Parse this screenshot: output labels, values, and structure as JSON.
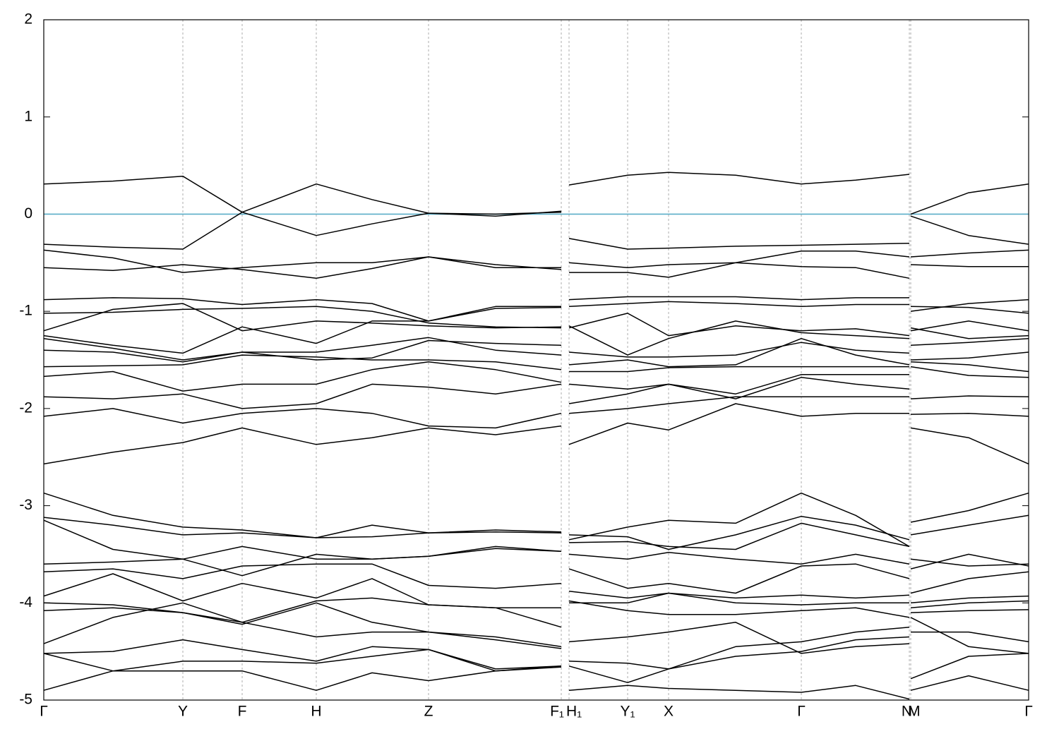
{
  "chart_data": {
    "type": "line",
    "x": [
      0,
      0.98,
      1.97,
      2.81,
      3.86,
      4.65,
      5.45,
      6.4,
      7.33,
      7.38,
      7.44,
      8.27,
      8.85,
      9.8,
      10.73,
      11.5,
      12.26,
      12.27,
      12.28,
      13.1,
      13.95
    ],
    "xlim": [
      0,
      13.95
    ],
    "xticks": [
      {
        "value": 0,
        "label": "Γ"
      },
      {
        "value": 1.97,
        "label": "Y"
      },
      {
        "value": 2.81,
        "label": "F"
      },
      {
        "value": 3.86,
        "label": "H"
      },
      {
        "value": 5.45,
        "label": "Z"
      },
      {
        "value": 7.33,
        "label": "F₁"
      },
      {
        "value": 7.44,
        "label": "H₁"
      },
      {
        "value": 8.27,
        "label": "Y₁"
      },
      {
        "value": 8.85,
        "label": "X"
      },
      {
        "value": 10.73,
        "label": "Γ"
      },
      {
        "value": 12.26,
        "label": "N"
      },
      {
        "value": 12.28,
        "label": "M"
      },
      {
        "value": 13.95,
        "label": "Γ"
      }
    ],
    "ylim": [
      -5,
      2
    ],
    "yticks": [
      -5,
      -4,
      -3,
      -2,
      -1,
      0,
      1,
      2
    ],
    "xgrid": true,
    "line_color": "#000000",
    "hline": {
      "value": 0,
      "color": "#5aaec8"
    },
    "series": [
      {
        "values": [
          0.31,
          0.34,
          0.39,
          0.02,
          -0.22,
          -0.1,
          0.01,
          0.0,
          0.02,
          null,
          -0.25,
          -0.36,
          -0.35,
          -0.33,
          -0.32,
          -0.31,
          -0.3,
          null,
          -0.02,
          -0.22,
          -0.31
        ]
      },
      {
        "values": [
          -0.31,
          -0.34,
          -0.36,
          0.02,
          0.31,
          0.15,
          0.01,
          -0.02,
          0.03,
          null,
          0.3,
          0.4,
          0.43,
          0.4,
          0.31,
          0.35,
          0.41,
          null,
          0.0,
          0.22,
          0.31
        ]
      },
      {
        "values": [
          -0.37,
          -0.45,
          -0.6,
          -0.55,
          -0.5,
          -0.5,
          -0.44,
          -0.55,
          -0.55,
          null,
          -0.5,
          -0.55,
          -0.52,
          -0.5,
          -0.38,
          -0.38,
          -0.44,
          null,
          -0.44,
          -0.4,
          -0.37
        ]
      },
      {
        "values": [
          -0.55,
          -0.58,
          -0.52,
          -0.57,
          -0.66,
          -0.56,
          -0.44,
          -0.52,
          -0.57,
          null,
          -0.6,
          -0.6,
          -0.65,
          -0.5,
          -0.54,
          -0.55,
          -0.66,
          null,
          -0.52,
          -0.54,
          -0.54
        ]
      },
      {
        "values": [
          -0.88,
          -0.86,
          -0.87,
          -0.93,
          -0.88,
          -0.92,
          -1.1,
          -0.95,
          -0.95,
          null,
          -0.88,
          -0.85,
          -0.85,
          -0.85,
          -0.88,
          -0.86,
          -0.86,
          null,
          -1.0,
          -0.92,
          -0.88
        ]
      },
      {
        "values": [
          -1.02,
          -1.01,
          -0.98,
          -0.97,
          -0.95,
          -1.0,
          -1.12,
          -1.16,
          -1.17,
          null,
          -0.95,
          -0.92,
          -0.9,
          -0.92,
          -0.95,
          -0.93,
          -0.93,
          null,
          -0.95,
          -0.96,
          -1.02
        ]
      },
      {
        "values": [
          -1.2,
          -0.98,
          -0.92,
          -1.2,
          -1.1,
          -1.12,
          -1.15,
          -1.17,
          -1.16,
          null,
          -1.17,
          -1.02,
          -1.25,
          -1.15,
          -1.2,
          -1.18,
          -1.25,
          null,
          -1.2,
          -1.1,
          -1.2
        ]
      },
      {
        "values": [
          -1.25,
          -1.35,
          -1.43,
          -1.16,
          -1.33,
          -1.1,
          -1.1,
          -0.97,
          -0.96,
          null,
          -1.15,
          -1.45,
          -1.28,
          -1.1,
          -1.22,
          -1.25,
          -1.28,
          null,
          -1.17,
          -1.28,
          -1.25
        ]
      },
      {
        "values": [
          -1.28,
          -1.38,
          -1.5,
          -1.42,
          -1.42,
          -1.35,
          -1.27,
          -1.4,
          -1.45,
          null,
          -1.42,
          -1.47,
          -1.47,
          -1.45,
          -1.32,
          -1.4,
          -1.43,
          null,
          -1.35,
          -1.32,
          -1.28
        ]
      },
      {
        "values": [
          -1.4,
          -1.42,
          -1.52,
          -1.42,
          -1.5,
          -1.48,
          -1.3,
          -1.33,
          -1.35,
          null,
          -1.55,
          -1.5,
          -1.57,
          -1.55,
          -1.28,
          -1.45,
          -1.55,
          null,
          -1.5,
          -1.48,
          -1.42
        ]
      },
      {
        "values": [
          -1.57,
          -1.56,
          -1.55,
          -1.45,
          -1.47,
          -1.5,
          -1.5,
          -1.52,
          -1.6,
          null,
          -1.62,
          -1.62,
          -1.58,
          -1.57,
          -1.57,
          -1.57,
          -1.57,
          null,
          -1.52,
          -1.55,
          -1.62
        ]
      },
      {
        "values": [
          -1.67,
          -1.62,
          -1.82,
          -1.75,
          -1.75,
          -1.6,
          -1.52,
          -1.6,
          -1.73,
          null,
          -1.75,
          -1.8,
          -1.75,
          -1.85,
          -1.65,
          -1.65,
          -1.65,
          null,
          -1.57,
          -1.66,
          -1.68
        ]
      },
      {
        "values": [
          -1.88,
          -1.9,
          -1.85,
          -2.0,
          -1.95,
          -1.75,
          -1.78,
          -1.85,
          -1.75,
          null,
          -1.95,
          -1.85,
          -1.75,
          -1.9,
          -1.68,
          -1.75,
          -1.8,
          null,
          -1.9,
          -1.87,
          -1.88
        ]
      },
      {
        "values": [
          -2.08,
          -2.0,
          -2.15,
          -2.05,
          -2.0,
          -2.05,
          -2.18,
          -2.2,
          -2.05,
          null,
          -2.05,
          -2.0,
          -1.95,
          -1.88,
          -1.88,
          -1.88,
          -1.88,
          null,
          -2.06,
          -2.05,
          -2.08
        ]
      },
      {
        "values": [
          -2.57,
          -2.45,
          -2.35,
          -2.2,
          -2.37,
          -2.3,
          -2.2,
          -2.27,
          -2.18,
          null,
          -2.37,
          -2.15,
          -2.22,
          -1.95,
          -2.08,
          -2.05,
          -2.05,
          null,
          -2.2,
          -2.3,
          -2.57
        ]
      },
      {
        "values": [
          -2.87,
          -3.1,
          -3.22,
          -3.25,
          -3.33,
          -3.2,
          -3.28,
          -3.27,
          -3.28,
          null,
          -3.35,
          -3.22,
          -3.15,
          -3.18,
          -2.87,
          -3.1,
          -3.42,
          null,
          -3.17,
          -3.05,
          -2.87
        ]
      },
      {
        "values": [
          -3.12,
          -3.2,
          -3.3,
          -3.28,
          -3.33,
          -3.32,
          -3.28,
          -3.25,
          -3.27,
          null,
          -3.3,
          -3.32,
          -3.45,
          -3.3,
          -3.11,
          -3.2,
          -3.35,
          null,
          -3.3,
          -3.2,
          -3.1
        ]
      },
      {
        "values": [
          -3.15,
          -3.45,
          -3.55,
          -3.42,
          -3.55,
          -3.55,
          -3.52,
          -3.42,
          -3.47,
          null,
          -3.38,
          -3.37,
          -3.42,
          -3.45,
          -3.18,
          -3.3,
          -3.42,
          null,
          -3.55,
          -3.62,
          -3.6
        ]
      },
      {
        "values": [
          -3.6,
          -3.58,
          -3.55,
          -3.72,
          -3.5,
          -3.55,
          -3.52,
          -3.44,
          -3.47,
          null,
          -3.5,
          -3.55,
          -3.48,
          -3.55,
          -3.6,
          -3.5,
          -3.6,
          null,
          -3.65,
          -3.5,
          -3.62
        ]
      },
      {
        "values": [
          -3.68,
          -3.65,
          -3.75,
          -3.62,
          -3.6,
          -3.6,
          -3.82,
          -3.85,
          -3.8,
          null,
          -3.65,
          -3.85,
          -3.8,
          -3.9,
          -3.62,
          -3.6,
          -3.75,
          null,
          -3.9,
          -3.75,
          -3.68
        ]
      },
      {
        "values": [
          -3.93,
          -3.7,
          -3.98,
          -3.8,
          -3.95,
          -3.75,
          -4.02,
          -4.05,
          -4.05,
          null,
          -3.88,
          -3.95,
          -3.9,
          -3.95,
          -3.92,
          -3.95,
          -3.92,
          null,
          -4.0,
          -3.95,
          -3.93
        ]
      },
      {
        "values": [
          -4.0,
          -4.02,
          -4.1,
          -4.2,
          -3.98,
          -3.95,
          -4.02,
          -4.05,
          -4.25,
          null,
          -4.0,
          -4.0,
          -3.9,
          -4.0,
          -4.02,
          -4.0,
          -4.0,
          null,
          -4.05,
          -4.0,
          -3.98
        ]
      },
      {
        "values": [
          -4.08,
          -4.05,
          -4.1,
          -4.22,
          -4.0,
          -4.2,
          -4.3,
          -4.35,
          -4.45,
          null,
          -3.98,
          -4.08,
          -4.12,
          -4.12,
          -4.08,
          -4.05,
          -4.15,
          null,
          -4.1,
          -4.08,
          -4.07
        ]
      },
      {
        "values": [
          -4.42,
          -4.15,
          -4.0,
          -4.2,
          -4.35,
          -4.3,
          -4.3,
          -4.38,
          -4.47,
          null,
          -4.4,
          -4.35,
          -4.3,
          -4.2,
          -4.52,
          -4.45,
          -4.42,
          null,
          -4.3,
          -4.3,
          -4.4
        ]
      },
      {
        "values": [
          -4.52,
          -4.5,
          -4.38,
          -4.48,
          -4.6,
          -4.45,
          -4.48,
          -4.68,
          -4.65,
          null,
          -4.6,
          -4.62,
          -4.68,
          -4.55,
          -4.5,
          -4.38,
          -4.35,
          null,
          -4.15,
          -4.45,
          -4.52
        ]
      },
      {
        "values": [
          -4.52,
          -4.7,
          -4.6,
          -4.6,
          -4.62,
          -4.55,
          -4.48,
          -4.7,
          -4.65,
          null,
          -4.65,
          -4.82,
          -4.68,
          -4.45,
          -4.4,
          -4.3,
          -4.25,
          null,
          -4.78,
          -4.55,
          -4.52
        ]
      },
      {
        "values": [
          -4.9,
          -4.7,
          -4.7,
          -4.7,
          -4.9,
          -4.72,
          -4.8,
          -4.7,
          -4.66,
          null,
          -4.9,
          -4.85,
          -4.88,
          -4.9,
          -4.92,
          -4.85,
          -4.99,
          null,
          -4.9,
          -4.75,
          -4.9
        ]
      }
    ]
  }
}
